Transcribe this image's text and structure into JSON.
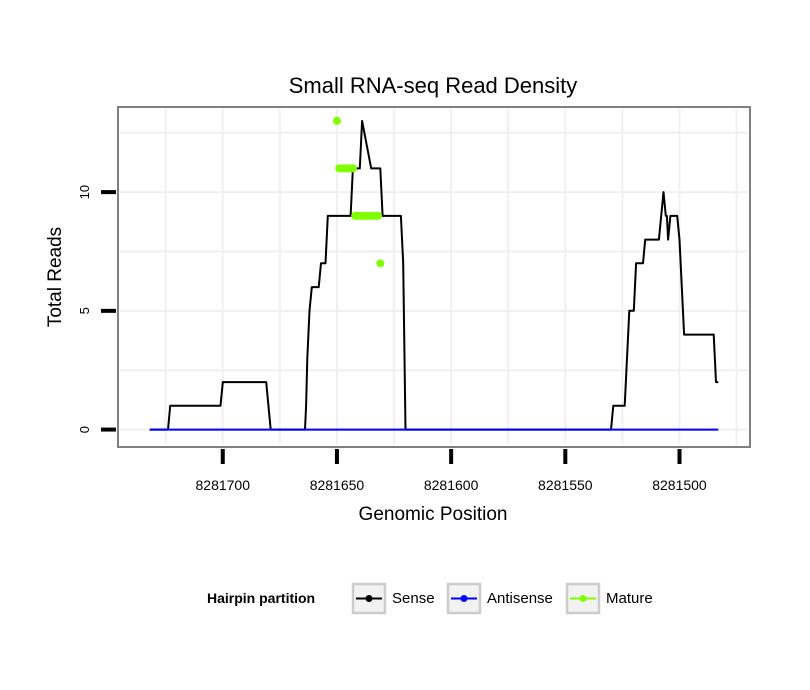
{
  "chart_data": {
    "type": "line",
    "title": "Small RNA-seq Read Density",
    "xlabel": "Genomic Position",
    "ylabel": "Total Reads",
    "x_reversed": true,
    "xlim": [
      8281745,
      8281470
    ],
    "ylim": [
      -0.65,
      13.5
    ],
    "x_ticks": [
      8281700,
      8281650,
      8281600,
      8281550,
      8281500
    ],
    "x_tick_labels": [
      "8281700",
      "8281650",
      "8281600",
      "8281550",
      "8281500"
    ],
    "y_ticks": [
      0,
      5,
      10
    ],
    "y_tick_labels": [
      "0",
      "5",
      "10"
    ],
    "grid": true,
    "legend": {
      "title": "Hairpin partition",
      "position": "bottom",
      "entries": [
        {
          "label": "Sense",
          "color": "#000000"
        },
        {
          "label": "Antisense",
          "color": "#0000ff"
        },
        {
          "label": "Mature",
          "color": "#7fff00"
        }
      ]
    },
    "series": [
      {
        "name": "Sense",
        "color": "#000000",
        "x": [
          8281732,
          8281724,
          8281723,
          8281715,
          8281714,
          8281701,
          8281700,
          8281694,
          8281681,
          8281679,
          8281672,
          8281664,
          8281663.5,
          8281663,
          8281662,
          8281661,
          8281658,
          8281657,
          8281655,
          8281654,
          8281651,
          8281650,
          8281644,
          8281643,
          8281640,
          8281639,
          8281635,
          8281634,
          8281631,
          8281630,
          8281627,
          8281626,
          8281625,
          8281622,
          8281621,
          8281620,
          8281530,
          8281529,
          8281526,
          8281524,
          8281523,
          8281522,
          8281520,
          8281519,
          8281516,
          8281515,
          8281512,
          8281511,
          8281509,
          8281508,
          8281507,
          8281506,
          8281505.5,
          8281505,
          8281504,
          8281503,
          8281501,
          8281500,
          8281499,
          8281498,
          8281497,
          8281485,
          8281484,
          8281483
        ],
        "y": [
          0,
          0,
          1,
          1,
          1,
          1,
          2,
          2,
          2,
          0,
          0,
          0,
          1,
          3,
          5,
          6,
          6,
          7,
          7,
          9,
          9,
          9,
          9,
          11,
          11,
          13,
          11,
          11,
          11,
          9,
          9,
          9,
          9,
          9,
          7,
          0,
          0,
          1,
          1,
          1,
          3,
          5,
          5,
          7,
          7,
          8,
          8,
          8,
          8,
          9,
          10,
          9,
          9,
          8,
          9,
          9,
          9,
          8,
          6,
          4,
          4,
          4,
          2,
          2
        ]
      },
      {
        "name": "Antisense",
        "color": "#0000ff",
        "x": [
          8281732,
          8281483
        ],
        "y": [
          0,
          0
        ]
      }
    ],
    "mature_points": {
      "name": "Mature",
      "color": "#7fff00",
      "x": [
        8281650,
        8281649,
        8281648,
        8281647,
        8281646,
        8281645,
        8281644,
        8281643,
        8281642,
        8281641,
        8281640,
        8281639,
        8281638,
        8281637,
        8281636,
        8281635,
        8281634,
        8281633,
        8281632,
        8281631
      ],
      "y": [
        13,
        11,
        11,
        11,
        11,
        11,
        11,
        11,
        9,
        9,
        9,
        9,
        9,
        9,
        9,
        9,
        9,
        9,
        9,
        7
      ]
    }
  }
}
